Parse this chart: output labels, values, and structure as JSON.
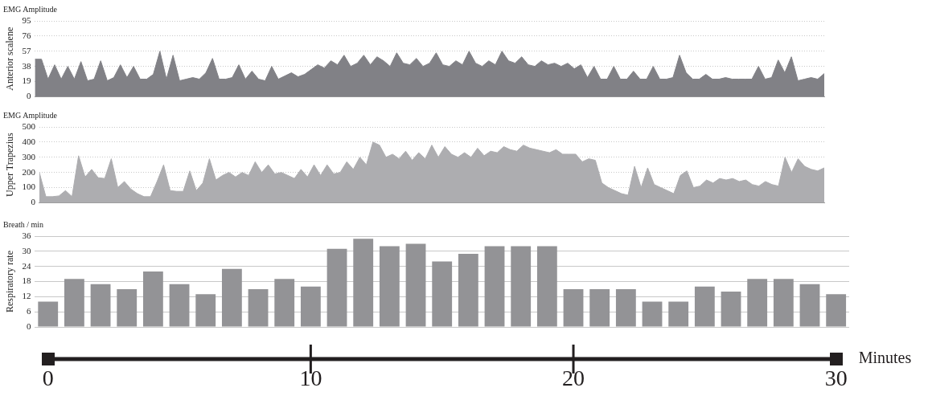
{
  "chart_data": [
    {
      "type": "area",
      "title": "EMG Amplitude",
      "ylabel": "Anterior scalene",
      "categories": [
        null,
        null,
        null,
        null,
        null,
        null,
        null,
        null,
        null,
        null,
        null,
        null,
        null,
        null,
        null,
        null,
        null,
        null,
        null,
        null,
        null,
        null,
        null,
        null,
        null,
        null,
        null,
        null,
        null,
        null,
        null,
        null,
        null,
        null,
        null,
        null,
        null,
        null,
        null,
        null,
        null,
        null,
        null,
        null,
        null,
        null,
        null,
        null,
        null,
        null,
        null,
        null,
        null,
        null,
        null,
        null,
        null,
        null,
        null,
        null,
        null,
        null,
        null,
        null,
        null,
        null,
        null,
        null,
        null,
        null,
        null,
        null,
        null,
        null,
        null,
        null,
        null,
        null,
        null,
        null,
        null,
        null,
        null,
        null,
        null,
        null,
        null,
        null,
        null,
        null,
        null,
        null,
        null,
        null,
        null,
        null,
        null,
        null,
        null,
        null,
        null,
        null,
        null,
        null,
        null,
        null,
        null,
        null,
        null,
        null,
        null,
        null,
        null,
        null,
        null,
        null,
        null,
        null,
        null,
        null,
        null
      ],
      "series": [
        {
          "color": "#818186",
          "values": [
            47,
            47,
            22,
            40,
            22,
            38,
            22,
            44,
            20,
            22,
            45,
            20,
            24,
            40,
            24,
            38,
            22,
            22,
            28,
            57,
            22,
            52,
            20,
            22,
            24,
            22,
            30,
            48,
            22,
            22,
            24,
            40,
            22,
            32,
            22,
            20,
            38,
            22,
            26,
            30,
            25,
            28,
            34,
            40,
            36,
            45,
            40,
            52,
            38,
            42,
            52,
            40,
            50,
            45,
            38,
            55,
            42,
            40,
            48,
            38,
            42,
            55,
            40,
            38,
            45,
            40,
            57,
            42,
            38,
            45,
            40,
            57,
            45,
            42,
            50,
            40,
            38,
            45,
            40,
            42,
            38,
            42,
            35,
            40,
            24,
            38,
            22,
            22,
            38,
            22,
            22,
            32,
            22,
            22,
            38,
            22,
            22,
            24,
            52,
            30,
            22,
            22,
            28,
            22,
            22,
            24,
            22,
            22,
            22,
            22,
            38,
            22,
            24,
            46,
            30,
            50,
            20,
            22,
            24,
            22,
            29
          ]
        }
      ],
      "ylim": [
        0,
        95
      ],
      "yticks": [
        0,
        19,
        38,
        57,
        76,
        95
      ],
      "grid": "y",
      "tick_labels": "y"
    },
    {
      "type": "area",
      "title": "EMG Amplitude",
      "ylabel": "Upper Trapezius",
      "categories": [
        null,
        null,
        null,
        null,
        null,
        null,
        null,
        null,
        null,
        null,
        null,
        null,
        null,
        null,
        null,
        null,
        null,
        null,
        null,
        null,
        null,
        null,
        null,
        null,
        null,
        null,
        null,
        null,
        null,
        null,
        null,
        null,
        null,
        null,
        null,
        null,
        null,
        null,
        null,
        null,
        null,
        null,
        null,
        null,
        null,
        null,
        null,
        null,
        null,
        null,
        null,
        null,
        null,
        null,
        null,
        null,
        null,
        null,
        null,
        null,
        null,
        null,
        null,
        null,
        null,
        null,
        null,
        null,
        null,
        null,
        null,
        null,
        null,
        null,
        null,
        null,
        null,
        null,
        null,
        null,
        null,
        null,
        null,
        null,
        null,
        null,
        null,
        null,
        null,
        null,
        null,
        null,
        null,
        null,
        null,
        null,
        null,
        null,
        null,
        null,
        null,
        null,
        null,
        null,
        null,
        null,
        null,
        null,
        null,
        null,
        null,
        null,
        null,
        null,
        null,
        null,
        null,
        null,
        null,
        null,
        null
      ],
      "series": [
        {
          "color": "#adadb0",
          "values": [
            200,
            40,
            40,
            45,
            80,
            40,
            310,
            170,
            220,
            165,
            160,
            290,
            100,
            140,
            90,
            60,
            40,
            40,
            140,
            250,
            80,
            75,
            75,
            210,
            80,
            130,
            290,
            150,
            180,
            200,
            170,
            200,
            180,
            270,
            200,
            250,
            190,
            200,
            180,
            160,
            220,
            170,
            250,
            180,
            250,
            190,
            200,
            270,
            220,
            300,
            250,
            400,
            380,
            300,
            320,
            290,
            340,
            280,
            330,
            290,
            380,
            300,
            370,
            320,
            300,
            330,
            300,
            360,
            310,
            340,
            330,
            370,
            350,
            340,
            380,
            360,
            350,
            340,
            330,
            350,
            320,
            320,
            320,
            270,
            290,
            280,
            130,
            100,
            80,
            60,
            50,
            240,
            100,
            230,
            120,
            100,
            80,
            60,
            180,
            210,
            100,
            110,
            150,
            130,
            160,
            150,
            160,
            140,
            150,
            120,
            110,
            140,
            120,
            110,
            300,
            200,
            290,
            240,
            220,
            210,
            230
          ]
        }
      ],
      "ylim": [
        0,
        500
      ],
      "yticks": [
        0,
        100,
        200,
        300,
        400,
        500
      ],
      "grid": "y",
      "tick_labels": "y"
    },
    {
      "type": "bar",
      "title": "Breath / min",
      "ylabel": "Respiratory rate",
      "xlabel": "Minutes",
      "x": [
        0,
        1,
        2,
        3,
        4,
        5,
        6,
        7,
        8,
        9,
        10,
        11,
        12,
        13,
        14,
        15,
        16,
        17,
        18,
        19,
        20,
        21,
        22,
        23,
        24,
        25,
        26,
        27,
        28,
        29,
        30
      ],
      "values": [
        10,
        19,
        17,
        15,
        22,
        17,
        13,
        23,
        15,
        19,
        16,
        31,
        35,
        32,
        33,
        26,
        29,
        32,
        32,
        32,
        15,
        15,
        15,
        10,
        10,
        16,
        14,
        19,
        19,
        17,
        13
      ],
      "color": "#939396",
      "xlim": [
        -0.5,
        30.5
      ],
      "xticks": [
        0,
        10,
        20,
        30
      ],
      "ylim": [
        0,
        36
      ],
      "yticks": [
        0,
        6,
        12,
        18,
        24,
        30,
        36
      ],
      "grid": "y"
    }
  ]
}
